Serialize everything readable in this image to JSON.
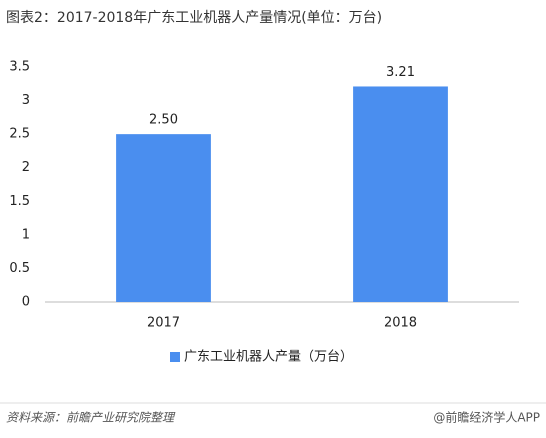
{
  "chart_data": {
    "type": "bar",
    "title": "图表2：2017-2018年广东工业机器人产量情况(单位：万台)",
    "categories": [
      "2017",
      "2018"
    ],
    "series": [
      {
        "name": "广东工业机器人产量（万台）",
        "color": "#4a8eef",
        "values": [
          2.5,
          3.21
        ],
        "value_labels": [
          "2.50",
          "3.21"
        ]
      }
    ],
    "ylim": [
      0,
      3.5
    ],
    "yticks": [
      0,
      0.5,
      1,
      1.5,
      2,
      2.5,
      3,
      3.5
    ],
    "grid": false,
    "legend": "bottom"
  },
  "footer": {
    "source": "资料来源：前瞻产业研究院整理",
    "brand": "@前瞻经济学人APP"
  }
}
